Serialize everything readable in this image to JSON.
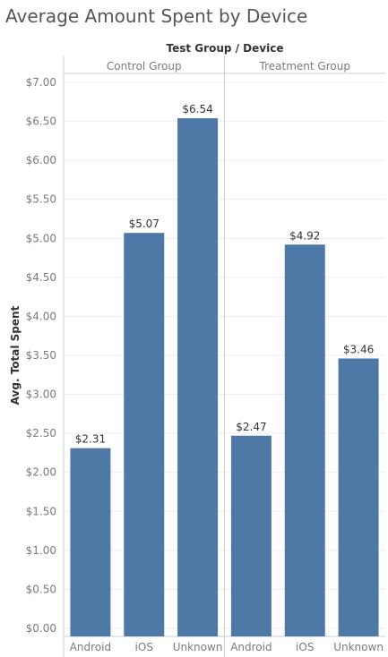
{
  "chart_data": {
    "type": "bar",
    "title": "Average Amount Spent by Device",
    "column_header": "Test Group  /  Device",
    "ylabel": "Avg. Total Spent",
    "ylim": [
      0,
      7
    ],
    "yticks": [
      0,
      0.5,
      1,
      1.5,
      2,
      2.5,
      3,
      3.5,
      4,
      4.5,
      5,
      5.5,
      6,
      6.5,
      7
    ],
    "ytick_labels": [
      "$0.00",
      "$0.50",
      "$1.00",
      "$1.50",
      "$2.00",
      "$2.50",
      "$3.00",
      "$3.50",
      "$4.00",
      "$4.50",
      "$5.00",
      "$5.50",
      "$6.00",
      "$6.50",
      "$7.00"
    ],
    "grid": true,
    "bar_color": "#4e79a7",
    "groups": [
      {
        "name": "Control Group",
        "categories": [
          "Android",
          "iOS",
          "Unknown"
        ],
        "values": [
          2.31,
          5.07,
          6.54
        ],
        "labels": [
          "$2.31",
          "$5.07",
          "$6.54"
        ]
      },
      {
        "name": "Treatment Group",
        "categories": [
          "Android",
          "iOS",
          "Unknown"
        ],
        "values": [
          2.47,
          4.92,
          3.46
        ],
        "labels": [
          "$2.47",
          "$4.92",
          "$3.46"
        ]
      }
    ]
  }
}
